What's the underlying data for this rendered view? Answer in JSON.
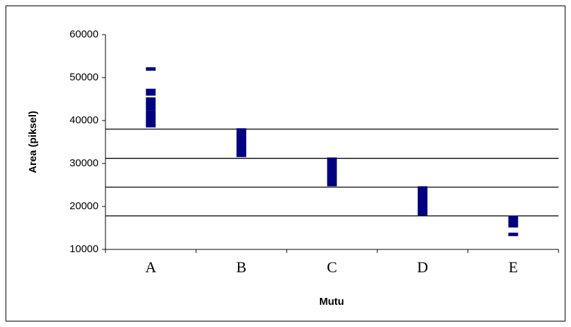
{
  "chart_data": {
    "type": "strip",
    "x_label": "Mutu",
    "y_label": "Area (piksel)",
    "categories": [
      "A",
      "B",
      "C",
      "D",
      "E"
    ],
    "values": [
      [
        52000,
        47000,
        46200,
        45000,
        44200,
        43500,
        42800,
        42000,
        41300,
        40600,
        40000,
        39400,
        38800
      ],
      [
        37800,
        37200,
        36600,
        36000,
        35400,
        34800,
        34200,
        33600,
        33000,
        32400,
        31900
      ],
      [
        31000,
        30400,
        29800,
        29200,
        28600,
        28000,
        27400,
        26800,
        26200,
        25600,
        25100
      ],
      [
        24300,
        23700,
        23100,
        22500,
        21900,
        21300,
        20700,
        20100,
        19500,
        18900,
        18300
      ],
      [
        17500,
        16800,
        16200,
        15500,
        13500
      ]
    ],
    "color": "#000080",
    "reference_lines": [
      38000,
      31200,
      24500,
      17800
    ],
    "ylim": [
      10000,
      60000
    ],
    "yticks": [
      10000,
      20000,
      30000,
      40000,
      50000,
      60000
    ]
  }
}
